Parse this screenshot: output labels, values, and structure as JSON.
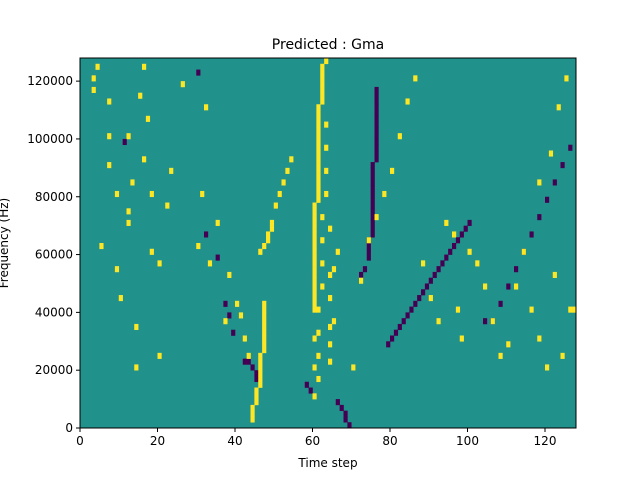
{
  "chart_data": {
    "type": "heatmap",
    "title": "Predicted : Gma",
    "xlabel": "Time step",
    "ylabel": "Frequency (Hz)",
    "xlim": [
      0,
      128
    ],
    "ylim": [
      0,
      128000
    ],
    "x_ticks": [
      0,
      20,
      40,
      60,
      80,
      100,
      120
    ],
    "y_ticks": [
      0,
      20000,
      40000,
      60000,
      80000,
      100000,
      120000
    ],
    "y_tick_labels": [
      "0",
      "20000",
      "40000",
      "60000",
      "80000",
      "100000",
      "120000"
    ],
    "grid": false,
    "colormap": "viridis",
    "value_colors": {
      "low": "#440154",
      "mid": "#21918c",
      "high": "#fde725"
    },
    "background_value": 0,
    "n_bins": 64,
    "bin_height_hz": 2000,
    "yellow_cells": [
      [
        3,
        60
      ],
      [
        3,
        58
      ],
      [
        4,
        62
      ],
      [
        5,
        31
      ],
      [
        7,
        56
      ],
      [
        7,
        50
      ],
      [
        7,
        45
      ],
      [
        9,
        40
      ],
      [
        9,
        27
      ],
      [
        10,
        22
      ],
      [
        12,
        35
      ],
      [
        12,
        37
      ],
      [
        12,
        50
      ],
      [
        13,
        42
      ],
      [
        14,
        10
      ],
      [
        14,
        17
      ],
      [
        15,
        57
      ],
      [
        16,
        62
      ],
      [
        16,
        46
      ],
      [
        17,
        53
      ],
      [
        18,
        40
      ],
      [
        18,
        30
      ],
      [
        20,
        12
      ],
      [
        20,
        28
      ],
      [
        22,
        38
      ],
      [
        23,
        44
      ],
      [
        26,
        59
      ],
      [
        30,
        31
      ],
      [
        31,
        40
      ],
      [
        32,
        55
      ],
      [
        33,
        28
      ],
      [
        35,
        35
      ],
      [
        37,
        18
      ],
      [
        38,
        26
      ],
      [
        40,
        21
      ],
      [
        41,
        19
      ],
      [
        42,
        15
      ],
      [
        43,
        12
      ],
      [
        44,
        1
      ],
      [
        44,
        2
      ],
      [
        44,
        3
      ],
      [
        45,
        4
      ],
      [
        45,
        5
      ],
      [
        45,
        6
      ],
      [
        46,
        7
      ],
      [
        46,
        8
      ],
      [
        46,
        9
      ],
      [
        46,
        10
      ],
      [
        46,
        11
      ],
      [
        46,
        12
      ],
      [
        47,
        13
      ],
      [
        47,
        14
      ],
      [
        47,
        15
      ],
      [
        47,
        16
      ],
      [
        47,
        17
      ],
      [
        47,
        18
      ],
      [
        47,
        19
      ],
      [
        47,
        20
      ],
      [
        47,
        21
      ],
      [
        46,
        30
      ],
      [
        47,
        31
      ],
      [
        48,
        32
      ],
      [
        48,
        33
      ],
      [
        49,
        34
      ],
      [
        49,
        35
      ],
      [
        50,
        38
      ],
      [
        51,
        40
      ],
      [
        52,
        42
      ],
      [
        53,
        44
      ],
      [
        54,
        46
      ],
      [
        60,
        5
      ],
      [
        60,
        10
      ],
      [
        60,
        15
      ],
      [
        60,
        20
      ],
      [
        60,
        21
      ],
      [
        60,
        22
      ],
      [
        60,
        23
      ],
      [
        60,
        24
      ],
      [
        60,
        25
      ],
      [
        60,
        26
      ],
      [
        60,
        27
      ],
      [
        60,
        28
      ],
      [
        60,
        29
      ],
      [
        60,
        30
      ],
      [
        60,
        31
      ],
      [
        60,
        32
      ],
      [
        60,
        33
      ],
      [
        60,
        34
      ],
      [
        60,
        35
      ],
      [
        60,
        36
      ],
      [
        60,
        37
      ],
      [
        60,
        38
      ],
      [
        61,
        39
      ],
      [
        61,
        40
      ],
      [
        61,
        41
      ],
      [
        61,
        42
      ],
      [
        61,
        43
      ],
      [
        61,
        44
      ],
      [
        61,
        45
      ],
      [
        61,
        46
      ],
      [
        61,
        47
      ],
      [
        61,
        48
      ],
      [
        61,
        49
      ],
      [
        61,
        50
      ],
      [
        61,
        51
      ],
      [
        61,
        52
      ],
      [
        61,
        53
      ],
      [
        61,
        54
      ],
      [
        61,
        55
      ],
      [
        62,
        56
      ],
      [
        62,
        57
      ],
      [
        62,
        58
      ],
      [
        62,
        59
      ],
      [
        62,
        60
      ],
      [
        62,
        61
      ],
      [
        62,
        62
      ],
      [
        63,
        63
      ],
      [
        61,
        8
      ],
      [
        61,
        12
      ],
      [
        61,
        16
      ],
      [
        61,
        20
      ],
      [
        62,
        24
      ],
      [
        62,
        28
      ],
      [
        62,
        32
      ],
      [
        62,
        36
      ],
      [
        63,
        40
      ],
      [
        63,
        44
      ],
      [
        63,
        48
      ],
      [
        63,
        52
      ],
      [
        64,
        11
      ],
      [
        64,
        14
      ],
      [
        64,
        17
      ],
      [
        64,
        22
      ],
      [
        64,
        26
      ],
      [
        64,
        34
      ],
      [
        65,
        18
      ],
      [
        65,
        27
      ],
      [
        66,
        30
      ],
      [
        70,
        10
      ],
      [
        72,
        25
      ],
      [
        74,
        32
      ],
      [
        76,
        36
      ],
      [
        78,
        40
      ],
      [
        80,
        44
      ],
      [
        82,
        50
      ],
      [
        84,
        56
      ],
      [
        86,
        60
      ],
      [
        88,
        28
      ],
      [
        90,
        22
      ],
      [
        92,
        18
      ],
      [
        94,
        35
      ],
      [
        96,
        33
      ],
      [
        97,
        20
      ],
      [
        98,
        15
      ],
      [
        100,
        30
      ],
      [
        102,
        28
      ],
      [
        104,
        24
      ],
      [
        106,
        18
      ],
      [
        108,
        12
      ],
      [
        110,
        14
      ],
      [
        112,
        24
      ],
      [
        114,
        30
      ],
      [
        116,
        20
      ],
      [
        118,
        15
      ],
      [
        120,
        10
      ],
      [
        122,
        26
      ],
      [
        124,
        12
      ],
      [
        126,
        20
      ],
      [
        127,
        20
      ],
      [
        118,
        42
      ],
      [
        121,
        47
      ],
      [
        123,
        55
      ],
      [
        125,
        60
      ]
    ],
    "purple_cells": [
      [
        11,
        49
      ],
      [
        30,
        61
      ],
      [
        32,
        33
      ],
      [
        35,
        29
      ],
      [
        37,
        21
      ],
      [
        38,
        19
      ],
      [
        39,
        16
      ],
      [
        42,
        11
      ],
      [
        43,
        11
      ],
      [
        44,
        10
      ],
      [
        45,
        9
      ],
      [
        45,
        8
      ],
      [
        58,
        7
      ],
      [
        59,
        6
      ],
      [
        66,
        4
      ],
      [
        67,
        3
      ],
      [
        68,
        2
      ],
      [
        68,
        1
      ],
      [
        69,
        0
      ],
      [
        72,
        26
      ],
      [
        73,
        27
      ],
      [
        74,
        29
      ],
      [
        74,
        30
      ],
      [
        74,
        31
      ],
      [
        74,
        32
      ],
      [
        75,
        33
      ],
      [
        75,
        34
      ],
      [
        75,
        35
      ],
      [
        75,
        36
      ],
      [
        75,
        37
      ],
      [
        75,
        38
      ],
      [
        75,
        39
      ],
      [
        75,
        40
      ],
      [
        75,
        41
      ],
      [
        75,
        42
      ],
      [
        75,
        43
      ],
      [
        75,
        44
      ],
      [
        75,
        45
      ],
      [
        76,
        46
      ],
      [
        76,
        47
      ],
      [
        76,
        48
      ],
      [
        76,
        49
      ],
      [
        76,
        50
      ],
      [
        76,
        51
      ],
      [
        76,
        52
      ],
      [
        76,
        53
      ],
      [
        76,
        54
      ],
      [
        76,
        55
      ],
      [
        76,
        56
      ],
      [
        76,
        57
      ],
      [
        76,
        58
      ],
      [
        79,
        14
      ],
      [
        80,
        15
      ],
      [
        81,
        16
      ],
      [
        82,
        17
      ],
      [
        83,
        18
      ],
      [
        84,
        19
      ],
      [
        85,
        20
      ],
      [
        86,
        21
      ],
      [
        87,
        22
      ],
      [
        88,
        23
      ],
      [
        89,
        24
      ],
      [
        90,
        25
      ],
      [
        91,
        26
      ],
      [
        92,
        27
      ],
      [
        93,
        28
      ],
      [
        94,
        29
      ],
      [
        95,
        30
      ],
      [
        96,
        31
      ],
      [
        97,
        32
      ],
      [
        98,
        33
      ],
      [
        99,
        34
      ],
      [
        100,
        35
      ],
      [
        104,
        18
      ],
      [
        106,
        18
      ],
      [
        108,
        21
      ],
      [
        110,
        24
      ],
      [
        112,
        27
      ],
      [
        114,
        30
      ],
      [
        116,
        33
      ],
      [
        118,
        36
      ],
      [
        120,
        39
      ],
      [
        122,
        42
      ],
      [
        124,
        45
      ],
      [
        126,
        48
      ]
    ]
  }
}
